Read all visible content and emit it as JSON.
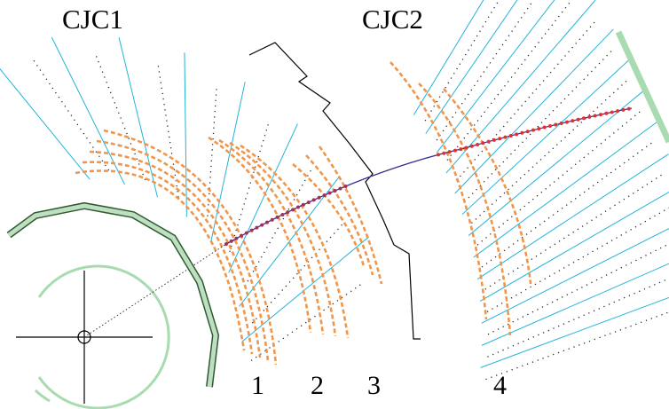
{
  "chambers": [
    {
      "label": "CJC1"
    },
    {
      "label": "CJC2"
    }
  ],
  "regions": [
    "1",
    "2",
    "3",
    "4"
  ]
}
